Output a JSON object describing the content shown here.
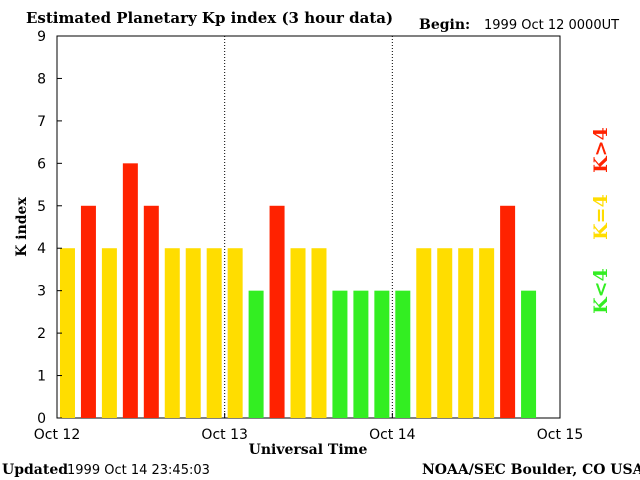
{
  "header": {
    "title": "Estimated Planetary Kp index (3 hour data)",
    "begin_label": "Begin:",
    "begin_value": "1999 Oct 12 0000UT"
  },
  "footer": {
    "updated_label": "Updated",
    "updated_value": "1999 Oct 14 23:45:03",
    "credit": "NOAA/SEC Boulder, CO USA"
  },
  "legend": {
    "low": "K<4",
    "mid": "K=4",
    "high": "K>4"
  },
  "colors": {
    "low": "#33ee22",
    "mid": "#ffdd00",
    "high": "#ff2200"
  },
  "chart_data": {
    "type": "bar",
    "title": "Estimated Planetary Kp index (3 hour data)",
    "xlabel": "Universal Time",
    "ylabel": "K index",
    "ylim": [
      0,
      9
    ],
    "yticks": [
      "0",
      "1",
      "2",
      "3",
      "4",
      "5",
      "6",
      "7",
      "8",
      "9"
    ],
    "xticks": [
      "Oct 12",
      "Oct 13",
      "Oct 14",
      "Oct 15"
    ],
    "interval_hours": 3,
    "day_separators": [
      "Oct 13",
      "Oct 14"
    ],
    "values": [
      4,
      5,
      4,
      6,
      5,
      4,
      4,
      4,
      4,
      3,
      5,
      4,
      4,
      3,
      3,
      3,
      3,
      4,
      4,
      4,
      4,
      5,
      3
    ]
  }
}
